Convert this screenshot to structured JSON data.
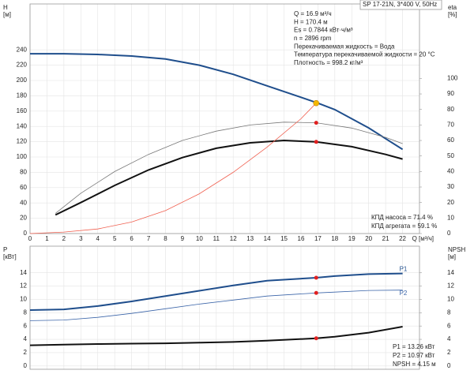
{
  "chart_data": [
    {
      "type": "line",
      "header": "SP 17-21N, 3*400 V, 50Hz",
      "ylabel_lines": [
        "H",
        "[м]"
      ],
      "y2label_lines": [
        "eta",
        "[%]"
      ],
      "xlabel": "Q [м³/ч]",
      "xlim": [
        0,
        23
      ],
      "xticks": [
        0,
        1,
        2,
        3,
        4,
        5,
        6,
        7,
        8,
        9,
        10,
        11,
        12,
        13,
        14,
        15,
        16,
        17,
        18,
        19,
        20,
        21,
        22
      ],
      "ylim": [
        0,
        300
      ],
      "yticks": [
        0,
        20,
        40,
        60,
        80,
        100,
        120,
        140,
        160,
        180,
        200,
        220,
        240
      ],
      "y2lim": [
        0,
        148
      ],
      "y2ticks": [
        0,
        10,
        20,
        30,
        40,
        50,
        60,
        70,
        80,
        90,
        100
      ],
      "grid": true,
      "series": [
        {
          "color": "#1f4e8c",
          "line_width": 2,
          "x": [
            0,
            2,
            4,
            6,
            8,
            10,
            12,
            14,
            16,
            17,
            18,
            20,
            22
          ],
          "values": [
            235,
            235,
            234,
            232,
            228,
            220,
            208,
            193,
            178,
            170.4,
            162,
            138,
            110
          ]
        },
        {
          "color": "#777777",
          "line_width": 0.8,
          "axis": "y2",
          "x": [
            1.5,
            3,
            5,
            7,
            9,
            11,
            13,
            15,
            16.9,
            19,
            21,
            22
          ],
          "values": [
            13,
            26,
            40,
            51,
            60,
            66,
            70,
            71.8,
            71.4,
            68,
            62,
            58
          ]
        },
        {
          "color": "#111111",
          "line_width": 2,
          "axis": "y2",
          "x": [
            1.5,
            3,
            5,
            7,
            9,
            11,
            13,
            15,
            16.9,
            19,
            21,
            22
          ],
          "values": [
            12,
            20,
            31,
            41,
            49,
            55,
            58.5,
            60,
            59.1,
            56,
            51,
            48
          ]
        },
        {
          "color": "#f06050",
          "line_width": 0.8,
          "x": [
            0,
            2,
            4,
            6,
            8,
            10,
            12,
            14,
            16,
            16.9
          ],
          "values": [
            0,
            2,
            6,
            15,
            30,
            52,
            80,
            113,
            150,
            170.4
          ]
        }
      ],
      "markers": [
        {
          "x": 16.9,
          "y": 170.4,
          "color": "#f5b800"
        },
        {
          "x": 16.9,
          "y": 71.4,
          "axis": "y2",
          "color": "#e02020"
        },
        {
          "x": 16.9,
          "y": 59.1,
          "axis": "y2",
          "color": "#e02020"
        }
      ],
      "annotations": [
        "Q = 16.9 м³/ч",
        "H = 170.4 м",
        "Es = 0.7844 кВт·ч/м³",
        "n = 2896 rpm",
        "Перекачиваемая жидкость = Вода",
        "Температура перекачиваемой жидкости = 20 °C",
        "Плотность = 998.2 кг/м³"
      ],
      "annotations_bottom": [
        "КПД насоса = 71.4 %",
        "КПД агрегата = 59.1 %"
      ]
    },
    {
      "type": "line",
      "ylabel_lines": [
        "P",
        "[кВт]"
      ],
      "y2label_lines": [
        "NPSH",
        "[м]"
      ],
      "xlim": [
        0,
        23
      ],
      "xticks": [
        0,
        1,
        2,
        3,
        4,
        5,
        6,
        7,
        8,
        9,
        10,
        11,
        12,
        13,
        14,
        15,
        16,
        17,
        18,
        19,
        20,
        21,
        22
      ],
      "ylim": [
        -0.5,
        18
      ],
      "yticks": [
        0,
        2,
        4,
        6,
        8,
        10,
        12,
        14
      ],
      "y2lim": [
        -0.5,
        18
      ],
      "y2ticks": [
        0,
        2,
        4,
        6,
        8,
        10,
        12,
        14
      ],
      "grid": true,
      "series": [
        {
          "name": "P1",
          "color": "#1f4e8c",
          "line_width": 2,
          "x": [
            0,
            2,
            4,
            6,
            8,
            10,
            12,
            14,
            16.9,
            18,
            20,
            22
          ],
          "values": [
            8.4,
            8.5,
            9,
            9.7,
            10.5,
            11.3,
            12.1,
            12.8,
            13.26,
            13.5,
            13.8,
            13.9
          ]
        },
        {
          "name": "P2",
          "color": "#3a64a8",
          "line_width": 0.8,
          "x": [
            0,
            2,
            4,
            6,
            8,
            10,
            12,
            14,
            16.9,
            18,
            20,
            22
          ],
          "values": [
            6.8,
            6.9,
            7.3,
            7.9,
            8.6,
            9.3,
            9.9,
            10.5,
            10.97,
            11.1,
            11.35,
            11.4
          ]
        },
        {
          "color": "#111111",
          "line_width": 2,
          "axis": "y2",
          "x": [
            0,
            2,
            4,
            6,
            8,
            10,
            12,
            14,
            16.9,
            18,
            20,
            22
          ],
          "values": [
            3.1,
            3.2,
            3.3,
            3.35,
            3.4,
            3.5,
            3.6,
            3.8,
            4.15,
            4.4,
            5,
            5.9
          ]
        }
      ],
      "markers": [
        {
          "x": 16.9,
          "y": 13.26,
          "color": "#e02020"
        },
        {
          "x": 16.9,
          "y": 10.97,
          "color": "#e02020"
        },
        {
          "x": 16.9,
          "y": 4.15,
          "axis": "y2",
          "color": "#e02020"
        }
      ],
      "annotations_bottom": [
        "P1 = 13.26 кВт",
        "P2 = 10.97 кВт",
        "NPSH = 4.15 м"
      ]
    }
  ]
}
